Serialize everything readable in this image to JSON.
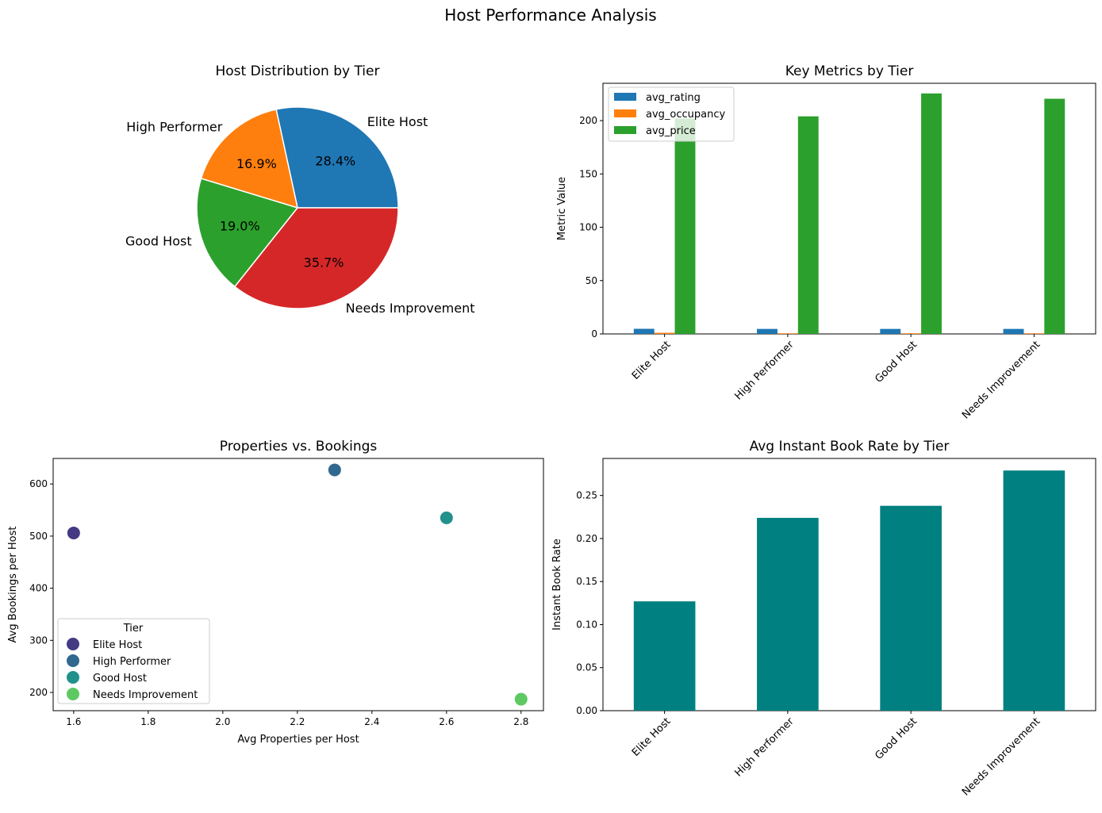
{
  "title": "Host Performance Analysis",
  "chart_data": [
    {
      "type": "pie",
      "title": "Host Distribution by Tier",
      "categories": [
        "Elite Host",
        "High Performer",
        "Good Host",
        "Needs Improvement"
      ],
      "values": [
        28.4,
        16.9,
        19.0,
        35.7
      ],
      "labels_pct": [
        "28.4%",
        "16.9%",
        "19.0%",
        "35.7%"
      ],
      "colors": [
        "#1f77b4",
        "#ff7f0e",
        "#2ca02c",
        "#d62728"
      ]
    },
    {
      "type": "bar",
      "title": "Key Metrics by Tier",
      "xlabel": "",
      "ylabel": "Metric Value",
      "categories": [
        "Elite Host",
        "High Performer",
        "Good Host",
        "Needs Improvement"
      ],
      "series": [
        {
          "name": "avg_rating",
          "values": [
            4.8,
            4.7,
            4.7,
            4.7
          ],
          "color": "#1f77b4"
        },
        {
          "name": "avg_occupancy",
          "values": [
            1.1,
            0.6,
            0.6,
            0.6
          ],
          "color": "#ff7f0e"
        },
        {
          "name": "avg_price",
          "values": [
            202,
            204,
            225.5,
            220.5
          ],
          "color": "#2ca02c"
        }
      ],
      "ylim": [
        0,
        235
      ],
      "yticks": [
        0,
        50,
        100,
        150,
        200
      ],
      "legend": "top-left"
    },
    {
      "type": "scatter",
      "title": "Properties vs. Bookings",
      "xlabel": "Avg Properties per Host",
      "ylabel": "Avg Bookings per Host",
      "legend_title": "Tier",
      "points": [
        {
          "name": "Elite Host",
          "x": 1.6,
          "y": 506,
          "color": "#443983"
        },
        {
          "name": "High Performer",
          "x": 2.3,
          "y": 627,
          "color": "#31688e"
        },
        {
          "name": "Good Host",
          "x": 2.6,
          "y": 535,
          "color": "#21918c"
        },
        {
          "name": "Needs Improvement",
          "x": 2.8,
          "y": 187,
          "color": "#5ec962"
        }
      ],
      "xlim": [
        1.545,
        2.86
      ],
      "ylim": [
        165,
        649
      ],
      "xticks": [
        1.6,
        1.8,
        2.0,
        2.2,
        2.4,
        2.6,
        2.8
      ],
      "yticks": [
        200,
        300,
        400,
        500,
        600
      ],
      "legend": "lower-left"
    },
    {
      "type": "bar",
      "title": "Avg Instant Book Rate by Tier",
      "xlabel": "",
      "ylabel": "Instant Book Rate",
      "categories": [
        "Elite Host",
        "High Performer",
        "Good Host",
        "Needs Improvement"
      ],
      "values": [
        0.127,
        0.224,
        0.238,
        0.279
      ],
      "color": "#008080",
      "ylim": [
        0,
        0.293
      ],
      "yticks": [
        0.0,
        0.05,
        0.1,
        0.15,
        0.2,
        0.25
      ]
    }
  ]
}
